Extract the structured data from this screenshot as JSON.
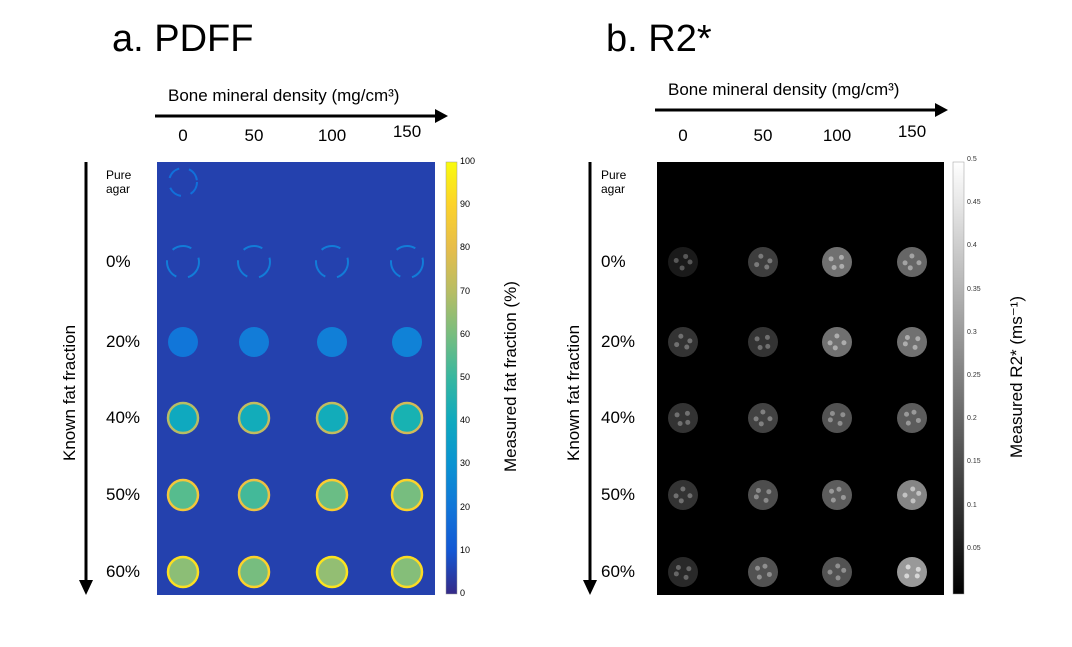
{
  "panel_a": {
    "title": "a. PDFF",
    "x_axis_label": "Bone mineral density (mg/cm³)",
    "x_ticks": [
      "0",
      "50",
      "100",
      "150"
    ],
    "y_axis_label": "Known fat fraction",
    "row_labels": [
      "Pure\nagar",
      "0%",
      "20%",
      "40%",
      "50%",
      "60%"
    ],
    "colorbar_label": "Measured fat fraction (%)",
    "colorbar_ticks": [
      "100",
      "90",
      "80",
      "70",
      "60",
      "50",
      "40",
      "30",
      "20",
      "10",
      "0"
    ],
    "background_value": 5,
    "vial_values": [
      [
        4,
        4,
        4,
        4
      ],
      [
        20,
        22,
        23,
        24
      ],
      [
        40,
        42,
        42,
        45
      ],
      [
        55,
        52,
        58,
        60
      ],
      [
        63,
        60,
        64,
        62
      ]
    ]
  },
  "panel_b": {
    "title": "b. R2*",
    "x_axis_label": "Bone mineral density (mg/cm³)",
    "x_ticks": [
      "0",
      "50",
      "100",
      "150"
    ],
    "y_axis_label": "Known fat fraction",
    "row_labels": [
      "Pure\nagar",
      "0%",
      "20%",
      "40%",
      "50%",
      "60%"
    ],
    "colorbar_label": "Measured R2* (ms⁻¹)",
    "colorbar_ticks": [
      "0.5",
      "0.45",
      "0.4",
      "0.35",
      "0.3",
      "0.25",
      "0.2",
      "0.15",
      "0.1",
      "0.05"
    ],
    "vial_values": [
      [
        0.05,
        0.12,
        0.22,
        0.2
      ],
      [
        0.1,
        0.1,
        0.22,
        0.22
      ],
      [
        0.1,
        0.13,
        0.16,
        0.18
      ],
      [
        0.1,
        0.15,
        0.18,
        0.26
      ],
      [
        0.08,
        0.16,
        0.16,
        0.3
      ]
    ]
  }
}
